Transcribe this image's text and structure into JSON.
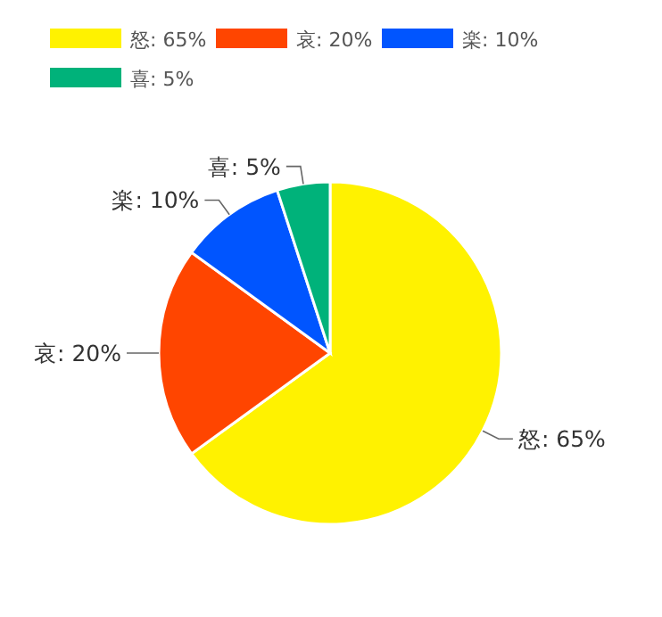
{
  "chart_data": {
    "type": "pie",
    "categories": [
      "怒",
      "哀",
      "楽",
      "喜"
    ],
    "values": [
      65,
      20,
      10,
      5
    ],
    "value_labels": [
      "65%",
      "20%",
      "10%",
      "5%"
    ],
    "colors": [
      "#fff200",
      "#ff4500",
      "#0055ff",
      "#00b27a"
    ],
    "legend": "top left"
  }
}
